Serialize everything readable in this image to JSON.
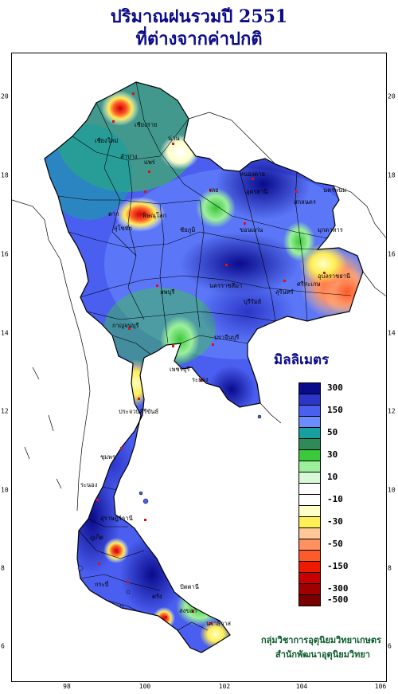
{
  "title": {
    "line1": "ปริมาณฝนรวมปี  2551",
    "line2": "ที่ต่างจากค่าปกติ"
  },
  "axes": {
    "lon_ticks": [
      "98",
      "100",
      "102",
      "104",
      "106"
    ],
    "lat_ticks": [
      "20",
      "18",
      "16",
      "14",
      "12",
      "10",
      "8",
      "6"
    ]
  },
  "legend": {
    "title": "มิลลิเมตร",
    "items": [
      {
        "label": "300",
        "color": "#0a0a8c"
      },
      {
        "label": "",
        "color": "#2b35c8"
      },
      {
        "label": "150",
        "color": "#4a5ef0"
      },
      {
        "label": "",
        "color": "#6a8cff"
      },
      {
        "label": "50",
        "color": "#18a0a0"
      },
      {
        "label": "",
        "color": "#2e8b57"
      },
      {
        "label": "30",
        "color": "#3cc83c"
      },
      {
        "label": "",
        "color": "#9cf09c"
      },
      {
        "label": "10",
        "color": "#d8f8d8"
      },
      {
        "label": "",
        "color": "#ffffff"
      },
      {
        "label": "-10",
        "color": "#ffffff"
      },
      {
        "label": "",
        "color": "#ffffc8"
      },
      {
        "label": "-30",
        "color": "#ffee55"
      },
      {
        "label": "",
        "color": "#ffc896"
      },
      {
        "label": "-50",
        "color": "#ff9060"
      },
      {
        "label": "",
        "color": "#ff5a2a"
      },
      {
        "label": "-150",
        "color": "#ee1a00"
      },
      {
        "label": "",
        "color": "#c80000"
      },
      {
        "label": "-300",
        "color": "#a00000"
      },
      {
        "label": "-500",
        "color": "#780000"
      }
    ]
  },
  "places": [
    "เชียงใหม่",
    "เชียงราย",
    "ลำปาง",
    "น่าน",
    "แพร่",
    "ตาก",
    "สุโขทัย",
    "พิษณุโลก",
    "เลย",
    "หนองคาย",
    "อุดรธานี",
    "สกลนคร",
    "นครพนม",
    "ขอนแก่น",
    "มุกดาหาร",
    "ชัยภูมิ",
    "อุบลราชธานี",
    "ศรีสะเกษ",
    "สุรินทร์",
    "นครราชสีมา",
    "บุรีรัมย์",
    "ลพบุรี",
    "กาญจนบุรี",
    "ระยอง",
    "ปราจีนบุรี",
    "เพชรบุรี",
    "ประจวบคีรีขันธ์",
    "ชุมพร",
    "ระนอง",
    "สุราษฎร์ธานี",
    "ภูเก็ต",
    "กระบี่",
    "ตรัง",
    "สงขลา",
    "นราธิวาส",
    "ปัตตานี"
  ],
  "credit": {
    "line1": "กลุ่มวิชาการอุตุนิยมวิทยาเกษตร",
    "line2": "สำนักพัฒนาอุตุนิยมวิทยา"
  },
  "palette": {
    "title_color": "#0b0b8a",
    "credit_color": "#0a5a2a"
  }
}
